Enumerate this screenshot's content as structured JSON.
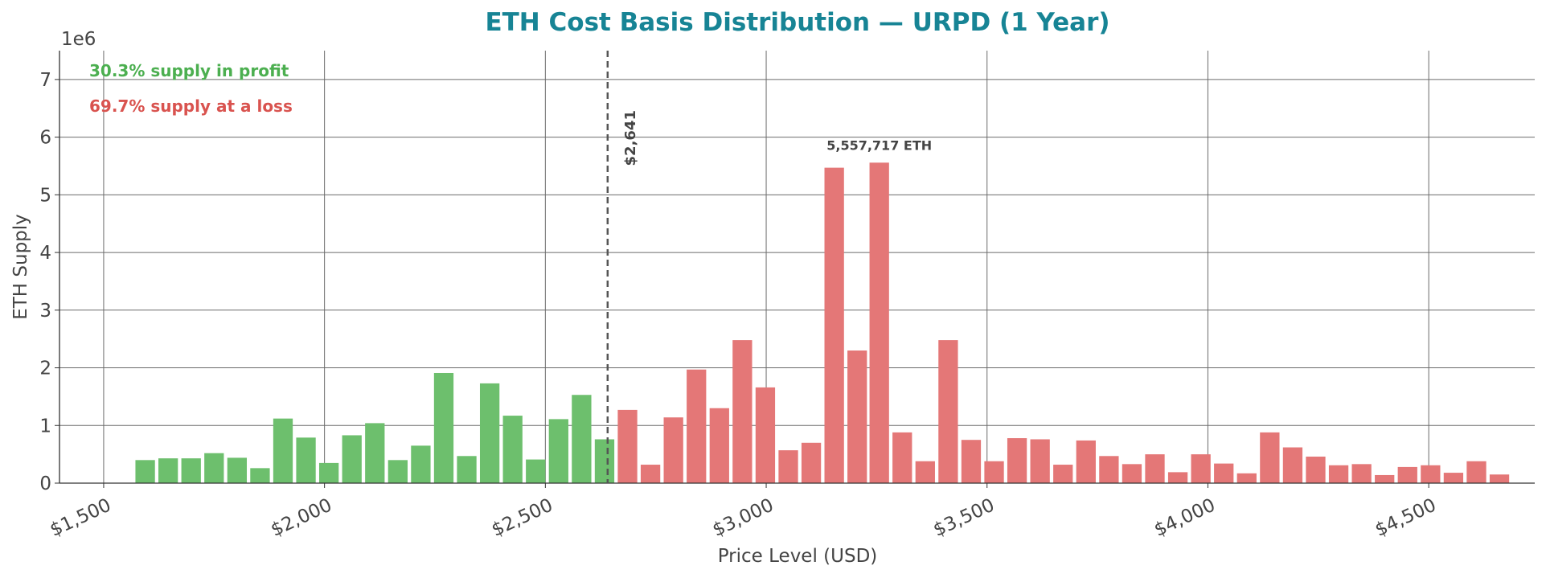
{
  "chart_data": {
    "type": "bar",
    "title": "ETH Cost Basis Distribution — URPD (1 Year)",
    "xlabel": "Price Level (USD)",
    "ylabel": "ETH Supply",
    "y_scale_label": "1e6",
    "xlim": [
      1400,
      4740
    ],
    "ylim": [
      0,
      7500000
    ],
    "x_ticks": [
      1500,
      2000,
      2500,
      3000,
      3500,
      4000,
      4500
    ],
    "x_tick_labels": [
      "$1,500",
      "$2,000",
      "$2,500",
      "$3,000",
      "$3,500",
      "$4,000",
      "$4,500"
    ],
    "y_ticks": [
      0,
      1000000,
      2000000,
      3000000,
      4000000,
      5000000,
      6000000,
      7000000
    ],
    "y_tick_labels": [
      "0",
      "1",
      "2",
      "3",
      "4",
      "5",
      "6",
      "7"
    ],
    "grid": true,
    "current_price": 2641,
    "current_price_label": "$2,641",
    "profit_text": "30.3% supply in profit",
    "loss_text": "69.7% supply at a loss",
    "peak_label": "5,557,717 ETH",
    "peak_x": 3256,
    "peak_value": 5557717,
    "colors": {
      "profit": "#6dbf6d",
      "loss": "#e47777",
      "profit_text": "#4caf50",
      "loss_text": "#d9534f",
      "title": "#178495",
      "current_price_line": "#555555"
    },
    "bin_width": 52,
    "x": [
      1594,
      1646,
      1698,
      1750,
      1802,
      1854,
      1906,
      1958,
      2010,
      2062,
      2114,
      2166,
      2218,
      2270,
      2322,
      2374,
      2426,
      2478,
      2530,
      2582,
      2634,
      2686,
      2738,
      2790,
      2842,
      2894,
      2946,
      2998,
      3050,
      3102,
      3154,
      3206,
      3256,
      3308,
      3360,
      3412,
      3464,
      3516,
      3568,
      3620,
      3672,
      3724,
      3776,
      3828,
      3880,
      3932,
      3984,
      4036,
      4088,
      4140,
      4192,
      4244,
      4296,
      4348,
      4400,
      4452,
      4504,
      4556,
      4608,
      4660
    ],
    "values": [
      400000,
      430000,
      430000,
      520000,
      440000,
      260000,
      1120000,
      790000,
      350000,
      830000,
      1040000,
      400000,
      650000,
      1910000,
      470000,
      1730000,
      1170000,
      410000,
      1110000,
      1530000,
      760000,
      1270000,
      320000,
      1140000,
      1970000,
      1300000,
      2480000,
      1660000,
      570000,
      700000,
      5470000,
      2300000,
      5557717,
      880000,
      380000,
      2480000,
      750000,
      380000,
      780000,
      760000,
      320000,
      740000,
      470000,
      330000,
      500000,
      190000,
      500000,
      340000,
      170000,
      880000,
      620000,
      460000,
      310000,
      330000,
      140000,
      280000,
      310000,
      180000,
      380000,
      150000
    ]
  }
}
